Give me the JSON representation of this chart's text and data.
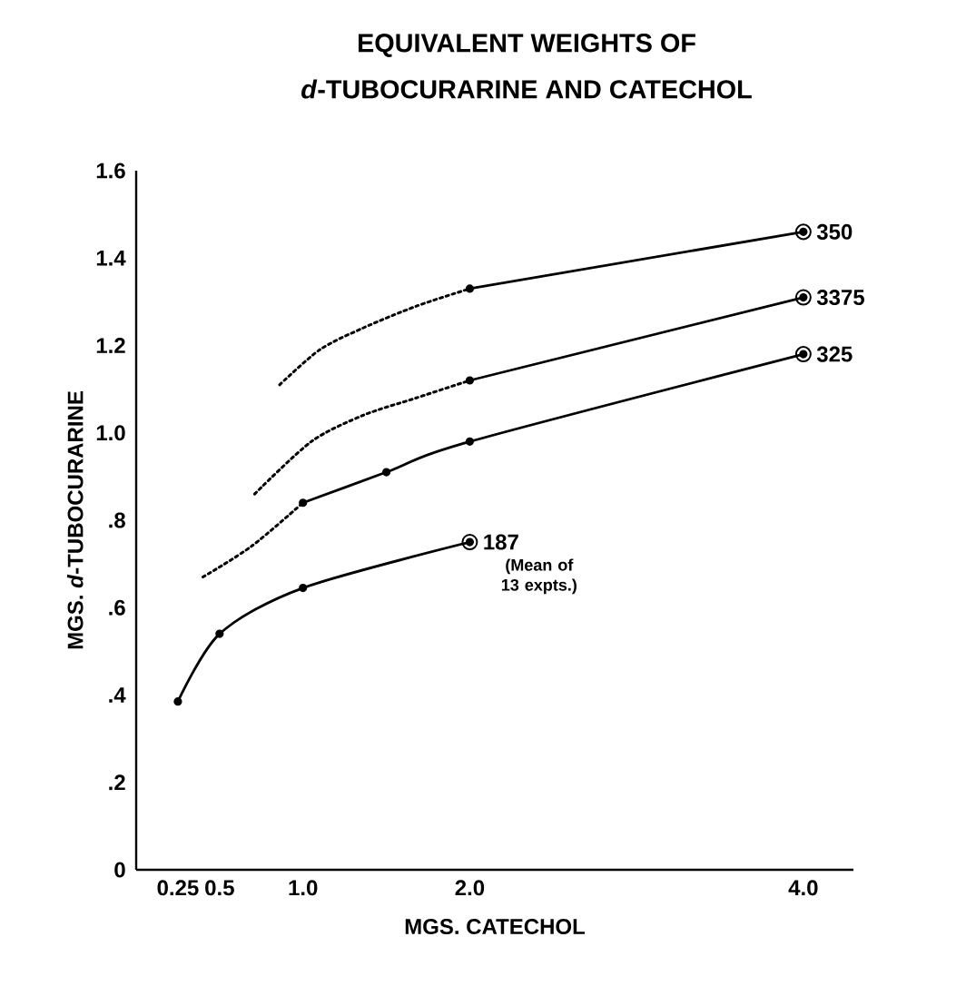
{
  "chart_data": {
    "type": "line",
    "title": "EQUIVALENT WEIGHTS OF",
    "subtitle": "*d*-TUBOCURARINE AND CATECHOL",
    "xlabel": "MGS.  CATECHOL",
    "ylabel": "MGS.  *d*-TUBOCURARINE",
    "xlim": [
      0,
      4.3
    ],
    "ylim": [
      0,
      1.6
    ],
    "xticks": [
      0.25,
      0.5,
      {
        "value": 1.0,
        "label": "1.0"
      },
      {
        "value": 2.0,
        "label": "2.0"
      },
      {
        "value": 4.0,
        "label": "4.0"
      }
    ],
    "yticks": [
      0,
      {
        "value": 0.2,
        "label": ".2"
      },
      {
        "value": 0.4,
        "label": ".4"
      },
      {
        "value": 0.6,
        "label": ".6"
      },
      {
        "value": 0.8,
        "label": ".8"
      },
      {
        "value": 1.0,
        "label": "1.0"
      },
      {
        "value": 1.2,
        "label": "1.2"
      },
      {
        "value": 1.4,
        "label": "1.4"
      },
      {
        "value": 1.6,
        "label": "1.6"
      }
    ],
    "series": [
      {
        "name": "350",
        "color": "#000000",
        "marker": "circle",
        "line_style": "solid",
        "x": [
          2.0,
          4.0
        ],
        "values": [
          1.33,
          1.46
        ]
      },
      {
        "color": "#000000",
        "marker": "none",
        "line_style": "dotted",
        "x": [
          0.86,
          1.1,
          1.36,
          1.68,
          2.0
        ],
        "values": [
          1.11,
          1.19,
          1.24,
          1.29,
          1.33
        ]
      },
      {
        "name": "3375",
        "color": "#000000",
        "marker": "circle",
        "line_style": "solid",
        "x": [
          2.0,
          4.0
        ],
        "values": [
          1.12,
          1.31
        ]
      },
      {
        "color": "#000000",
        "marker": "none",
        "line_style": "dotted",
        "x": [
          0.71,
          1.05,
          1.36,
          1.68,
          2.0
        ],
        "values": [
          0.86,
          0.98,
          1.04,
          1.08,
          1.12
        ]
      },
      {
        "name": "325",
        "color": "#000000",
        "marker": "circle",
        "line_style": "solid",
        "x": [
          1.0,
          1.5,
          2.0,
          4.0
        ],
        "values": [
          0.84,
          0.91,
          0.98,
          1.18
        ]
      },
      {
        "color": "#000000",
        "marker": "none",
        "line_style": "dotted",
        "x": [
          0.4,
          0.69,
          1.0
        ],
        "values": [
          0.67,
          0.74,
          0.84
        ]
      },
      {
        "name": "187",
        "color": "#000000",
        "marker": "circle",
        "line_style": "solid",
        "x": [
          0.25,
          0.5,
          1.0,
          2.0
        ],
        "values": [
          0.385,
          0.54,
          0.645,
          0.75
        ]
      }
    ],
    "annotations": [
      {
        "text": "(Mean of 13 expts.)",
        "x": 2.0,
        "y": 0.75
      }
    ]
  }
}
